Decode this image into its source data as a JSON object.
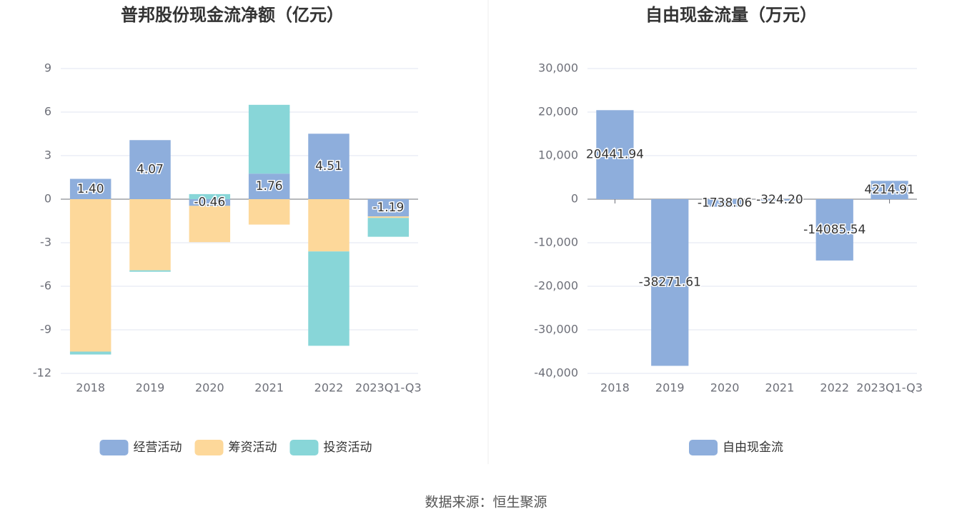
{
  "chart_data": [
    {
      "type": "bar",
      "stacked": true,
      "title": "普邦股份现金流净额（亿元）",
      "categories": [
        "2018",
        "2019",
        "2020",
        "2021",
        "2022",
        "2023Q1-Q3"
      ],
      "series": [
        {
          "name": "经营活动",
          "color": "#8eaedc",
          "values": [
            1.4,
            4.07,
            -0.46,
            1.76,
            4.51,
            -1.19
          ],
          "value_labels": [
            "1.40",
            "4.07",
            "-0.46",
            "1.76",
            "4.51",
            "-1.19"
          ]
        },
        {
          "name": "筹资活动",
          "color": "#fdd89a",
          "values": [
            -10.5,
            -4.9,
            -2.5,
            -1.75,
            -3.6,
            -0.1
          ]
        },
        {
          "name": "投资活动",
          "color": "#88d6d8",
          "values": [
            -0.2,
            -0.1,
            0.35,
            4.74,
            -6.5,
            -1.3
          ]
        }
      ],
      "ylim": [
        -12,
        9
      ],
      "yticks": [
        -12,
        -9,
        -6,
        -3,
        0,
        3,
        6,
        9
      ],
      "grid": true,
      "legend": "bottom"
    },
    {
      "type": "bar",
      "title": "自由现金流量（万元）",
      "categories": [
        "2018",
        "2019",
        "2020",
        "2021",
        "2022",
        "2023Q1-Q3"
      ],
      "series": [
        {
          "name": "自由现金流",
          "color": "#8eaedc",
          "values": [
            20441.94,
            -38271.61,
            -1738.06,
            -324.2,
            -14085.54,
            4214.91
          ],
          "value_labels": [
            "20441.94",
            "-38271.61",
            "-1738.06",
            "-324.20",
            "-14085.54",
            "4214.91"
          ]
        }
      ],
      "ylim": [
        -40000,
        30000
      ],
      "yticks": [
        {
          "value": -40000,
          "label": "-40,000"
        },
        {
          "value": -30000,
          "label": "-30,000"
        },
        {
          "value": -20000,
          "label": "-20,000"
        },
        {
          "value": -10000,
          "label": "-10,000"
        },
        0,
        {
          "value": 10000,
          "label": "10,000"
        },
        {
          "value": 20000,
          "label": "20,000"
        },
        {
          "value": 30000,
          "label": "30,000"
        }
      ],
      "grid": true,
      "legend": "bottom"
    }
  ],
  "source": "数据来源：恒生聚源"
}
